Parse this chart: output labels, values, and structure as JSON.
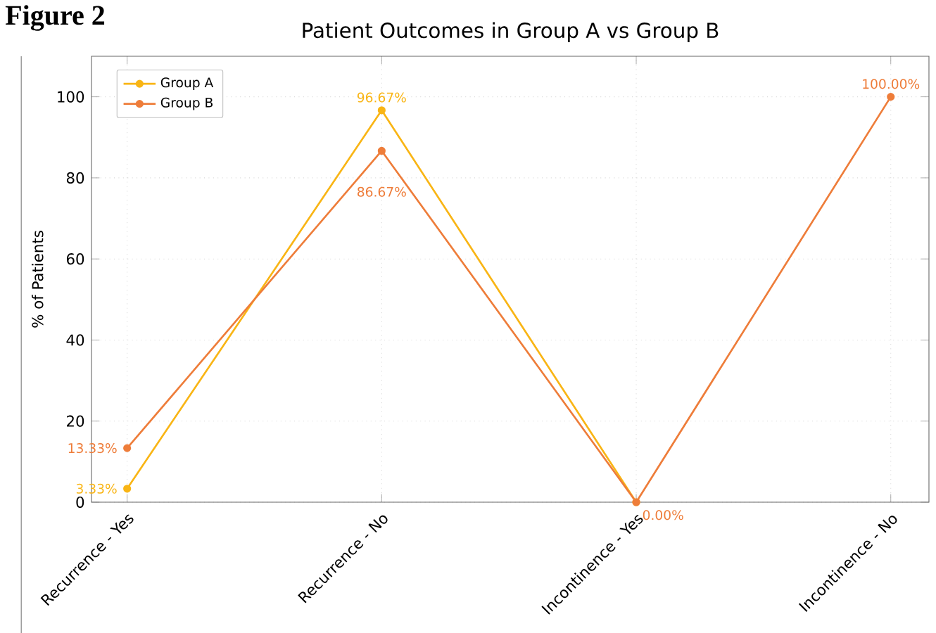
{
  "chart_data": {
    "type": "line",
    "title": "Patient Outcomes in Group A vs Group B",
    "ylabel": "% of Patients",
    "annotations": [
      "Figure 2"
    ],
    "categories": [
      "Recurrence - Yes",
      "Recurrence - No",
      "Incontinence - Yes",
      "Incontinence - No"
    ],
    "series": [
      {
        "name": "Group A",
        "color": "#f9b515",
        "values": [
          3.33,
          96.67,
          0,
          null
        ],
        "value_labels": [
          "3.33%",
          "96.67%",
          null,
          null
        ]
      },
      {
        "name": "Group B",
        "color": "#ee7d3a",
        "values": [
          13.33,
          86.67,
          0,
          100
        ],
        "value_labels": [
          "13.33%",
          "86.67%",
          "0.00%",
          "100.00%"
        ]
      }
    ],
    "ylim": [
      0,
      110
    ],
    "yticks": [
      0,
      20,
      40,
      60,
      80,
      100
    ],
    "grid": true,
    "legend": "top left",
    "marker": "circle",
    "line_style": "solid"
  }
}
